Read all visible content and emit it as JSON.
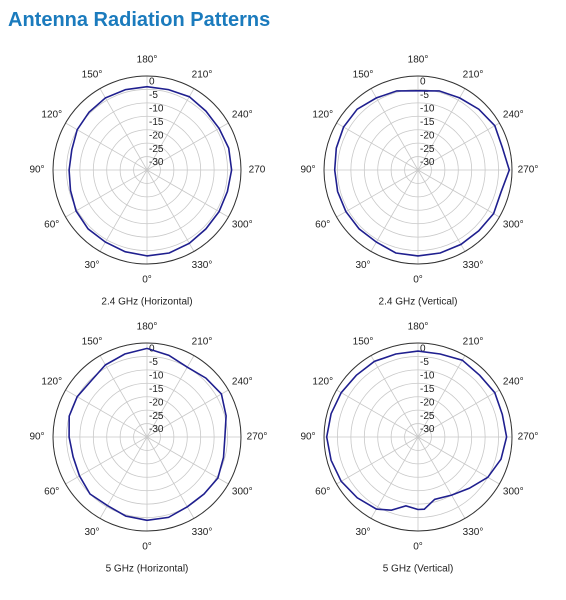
{
  "title": "Antenna Radiation Patterns",
  "chart_data": [
    {
      "type": "polar",
      "caption": "2.4 GHz (Horizontal)",
      "color": "#1f1f8f",
      "x": [
        0,
        15,
        30,
        45,
        60,
        75,
        90,
        105,
        120,
        135,
        150,
        165,
        180,
        195,
        210,
        225,
        240,
        255,
        270,
        285,
        300,
        315,
        330,
        345
      ],
      "values": [
        -3,
        -3.5,
        -4,
        -4,
        -4.5,
        -5.5,
        -6,
        -6,
        -5,
        -4.5,
        -4,
        -4,
        -4,
        -4,
        -3.5,
        -4,
        -4,
        -3.5,
        -3.5,
        -4,
        -4,
        -4,
        -3.5,
        -3
      ],
      "rlim": [
        -35,
        0
      ],
      "rticks": [
        0,
        -5,
        -10,
        -15,
        -20,
        -25,
        -30
      ],
      "thetaticks": [
        {
          "value": 0,
          "label": "0°"
        },
        {
          "value": 30,
          "label": "30°"
        },
        {
          "value": 60,
          "label": "60°"
        },
        {
          "value": 90,
          "label": "90°"
        },
        {
          "value": 120,
          "label": "120°"
        },
        {
          "value": 150,
          "label": "150°"
        },
        {
          "value": 180,
          "label": "180°"
        },
        {
          "value": 210,
          "label": "210°"
        },
        {
          "value": 240,
          "label": "240°"
        },
        270,
        {
          "value": 300,
          "label": "300°"
        },
        {
          "value": 330,
          "label": "330°"
        }
      ]
    },
    {
      "type": "polar",
      "caption": "2.4 GHz (Vertical)",
      "color": "#1f1f8f",
      "x": [
        0,
        15,
        30,
        45,
        60,
        75,
        90,
        105,
        120,
        135,
        150,
        165,
        180,
        195,
        210,
        225,
        240,
        255,
        270,
        285,
        300,
        315,
        330,
        345
      ],
      "values": [
        -3,
        -3,
        -4,
        -4,
        -4,
        -4,
        -4,
        -3.5,
        -3,
        -3,
        -4,
        -4.5,
        -5.5,
        -4.5,
        -4,
        -3,
        -2,
        -2.5,
        -1,
        -3,
        -2.5,
        -3,
        -3,
        -3
      ],
      "rlim": [
        -35,
        0
      ],
      "rticks": [
        0,
        -5,
        -10,
        -15,
        -20,
        -25,
        -30
      ],
      "thetaticks": [
        {
          "value": 0,
          "label": "0°"
        },
        {
          "value": 30,
          "label": "30°"
        },
        {
          "value": 60,
          "label": "60°"
        },
        {
          "value": 90,
          "label": "90°"
        },
        {
          "value": 120,
          "label": "120°"
        },
        {
          "value": 150,
          "label": "150°"
        },
        {
          "value": 180,
          "label": "180°"
        },
        {
          "value": 210,
          "label": "210°"
        },
        {
          "value": 240,
          "label": "240°"
        },
        {
          "value": 270,
          "label": "270°"
        },
        {
          "value": 300,
          "label": "300°"
        },
        {
          "value": 330,
          "label": "330°"
        }
      ]
    },
    {
      "type": "polar",
      "caption": "5 GHz (Horizontal)",
      "color": "#1f1f8f",
      "x": [
        0,
        15,
        30,
        45,
        60,
        75,
        90,
        105,
        120,
        135,
        150,
        165,
        180,
        195,
        210,
        225,
        240,
        255,
        270,
        285,
        300,
        315,
        330,
        345
      ],
      "values": [
        -4,
        -4.5,
        -5.5,
        -5,
        -6,
        -6.5,
        -6,
        -5,
        -5,
        -5.5,
        -4,
        -3,
        -2,
        -3.5,
        -5,
        -4,
        -3,
        -4.5,
        -6,
        -5.5,
        -4.5,
        -5,
        -5,
        -4
      ],
      "rlim": [
        -35,
        0
      ],
      "rticks": [
        0,
        -5,
        -10,
        -15,
        -20,
        -25,
        -30
      ],
      "thetaticks": [
        {
          "value": 0,
          "label": "0°"
        },
        {
          "value": 30,
          "label": "30°"
        },
        {
          "value": 60,
          "label": "60°"
        },
        {
          "value": 90,
          "label": "90°"
        },
        {
          "value": 120,
          "label": "120°"
        },
        {
          "value": 150,
          "label": "150°"
        },
        {
          "value": 180,
          "label": "180°"
        },
        {
          "value": 210,
          "label": "210°"
        },
        {
          "value": 240,
          "label": "240°"
        },
        {
          "value": 270,
          "label": "270°"
        },
        {
          "value": 300,
          "label": "300°"
        },
        {
          "value": 330,
          "label": "330°"
        }
      ]
    },
    {
      "type": "polar",
      "caption": "5 GHz (Vertical)",
      "color": "#1f1f8f",
      "x": [
        0,
        10,
        20,
        30,
        45,
        60,
        75,
        90,
        105,
        120,
        135,
        150,
        165,
        180,
        195,
        210,
        225,
        240,
        255,
        270,
        285,
        300,
        315,
        330,
        345,
        355
      ],
      "values": [
        -8,
        -9,
        -6,
        -4,
        -3,
        -2,
        -1.5,
        -1,
        -1.5,
        -2,
        -2.5,
        -2.5,
        -3,
        -3,
        -3,
        -2,
        -2.5,
        -2,
        -2.5,
        -2,
        -3,
        -5,
        -8,
        -10,
        -11,
        -8
      ],
      "rlim": [
        -35,
        0
      ],
      "rticks": [
        0,
        -5,
        -10,
        -15,
        -20,
        -25,
        -30
      ],
      "thetaticks": [
        {
          "value": 0,
          "label": "0°"
        },
        {
          "value": 30,
          "label": "30°"
        },
        {
          "value": 60,
          "label": "60°"
        },
        {
          "value": 90,
          "label": "90°"
        },
        {
          "value": 120,
          "label": "120°"
        },
        {
          "value": 150,
          "label": "150°"
        },
        {
          "value": 180,
          "label": "180°"
        },
        {
          "value": 210,
          "label": "210°"
        },
        {
          "value": 240,
          "label": "240°"
        },
        {
          "value": 270,
          "label": "270°"
        },
        {
          "value": 300,
          "label": "300°"
        },
        {
          "value": 330,
          "label": "330°"
        }
      ]
    }
  ]
}
